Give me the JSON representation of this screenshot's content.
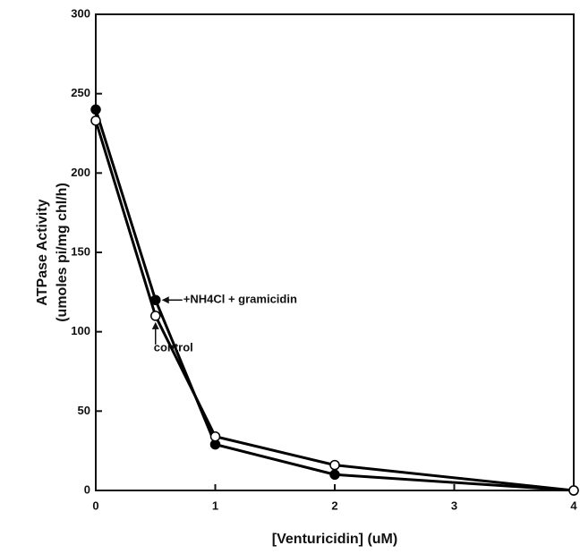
{
  "chart_data": {
    "type": "line",
    "x_label": "[Venturicidin]    (uM)",
    "y_label": [
      "ATPase Activity",
      "(umoles pi/mg chl/h)"
    ],
    "x": [
      0,
      0.5,
      1,
      2,
      4
    ],
    "series": [
      {
        "name": "+NH4Cl + gramicidin",
        "color": "#000000",
        "marker_fill": "#000000",
        "values": [
          240,
          120,
          29,
          10,
          0
        ]
      },
      {
        "name": "control",
        "color": "#000000",
        "marker_fill": "#ffffff",
        "values": [
          233,
          110,
          34,
          16,
          0
        ]
      }
    ],
    "xlim": [
      0,
      4
    ],
    "xticks": [
      0,
      1,
      2,
      3,
      4
    ],
    "ylim": [
      0,
      300
    ],
    "yticks": [
      0,
      50,
      100,
      150,
      200,
      250,
      300
    ],
    "grid": false
  }
}
